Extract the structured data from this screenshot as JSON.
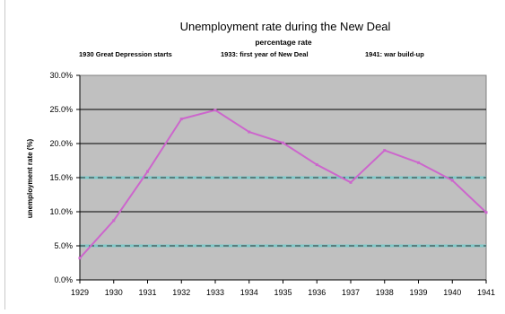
{
  "chart_data": {
    "type": "line",
    "title": "Unemployment rate during the New Deal",
    "subtitle": "percentage rate",
    "annotations": [
      "1930 Great Depression starts",
      "1933: first year of New Deal",
      "1941: war build-up"
    ],
    "xlabel": "",
    "ylabel": "unemployment rate (%)",
    "categories": [
      "1929",
      "1930",
      "1931",
      "1932",
      "1933",
      "1934",
      "1935",
      "1936",
      "1937",
      "1938",
      "1939",
      "1940",
      "1941"
    ],
    "series": [
      {
        "values": [
          3.2,
          8.7,
          15.9,
          23.6,
          24.9,
          21.7,
          20.1,
          16.9,
          14.3,
          19.0,
          17.2,
          14.6,
          9.9
        ]
      }
    ],
    "y_ticks": [
      "0.0%",
      "5.0%",
      "10.0%",
      "15.0%",
      "20.0%",
      "25.0%",
      "30.0%"
    ],
    "ylim": [
      0,
      30
    ],
    "y_step": 5,
    "reference_lines": [
      5,
      15
    ],
    "grid": true,
    "legend": "none",
    "colors": {
      "plot_background": "#c0c0c0",
      "line": "#cc66cc",
      "gridline": "#000000",
      "reference_line": "#7ec8c8"
    }
  }
}
